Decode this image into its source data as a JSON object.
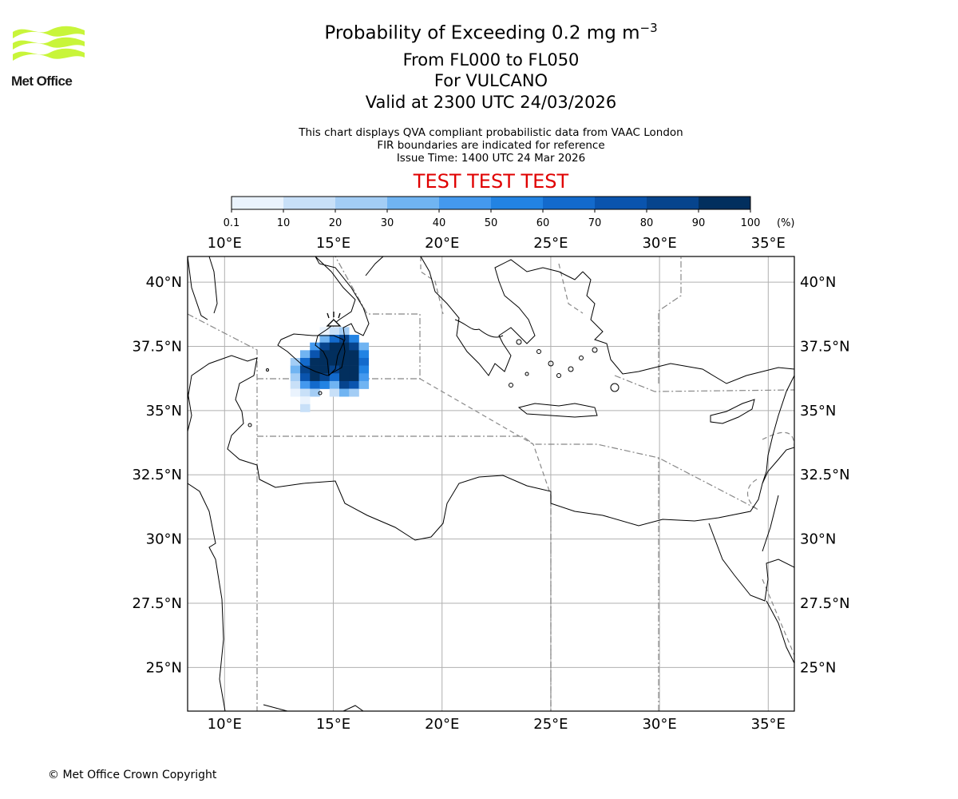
{
  "logo": {
    "text": "Met Office",
    "icon": "met-office-wave-logo",
    "color": "#c8f53a"
  },
  "titles": {
    "main_prefix": "Probability of Exceeding 0.2 mg m",
    "main_sup": "−3",
    "levels": "From FL000 to FL050",
    "volcano": "For VULCANO",
    "valid": "Valid at 2300 UTC 24/03/2026"
  },
  "subtitles": {
    "line1": "This chart displays QVA compliant probabilistic data from VAAC London",
    "line2": "FIR boundaries are indicated for reference",
    "line3": "Issue Time: 1400 UTC 24 Mar 2026"
  },
  "test_banner": "TEST TEST TEST",
  "colorbar": {
    "labels": [
      "0.1",
      "10",
      "20",
      "30",
      "40",
      "50",
      "60",
      "70",
      "80",
      "90",
      "100"
    ],
    "unit": "(%)",
    "colors": [
      "#eaf3fd",
      "#c8e0f8",
      "#a3cdf5",
      "#70b4f2",
      "#4499ee",
      "#2283e3",
      "#136acc",
      "#0a54ae",
      "#06448d",
      "#022f5e"
    ]
  },
  "map": {
    "lon_range": [
      8.3,
      36.2
    ],
    "lat_range": [
      23.3,
      41.0
    ],
    "lon_ticks": [
      "10°E",
      "15°E",
      "20°E",
      "25°E",
      "30°E",
      "35°E"
    ],
    "lat_ticks": [
      "40°N",
      "37.5°N",
      "35°N",
      "32.5°N",
      "30°N",
      "27.5°N",
      "25°N"
    ],
    "volcano_icon": "volcano-icon",
    "ash_cells": [
      [
        14.6,
        38.1,
        0
      ],
      [
        15.05,
        38.1,
        1
      ],
      [
        15.5,
        38.1,
        2
      ],
      [
        14.6,
        37.8,
        3
      ],
      [
        15.05,
        37.8,
        6
      ],
      [
        15.5,
        37.8,
        8
      ],
      [
        15.95,
        37.8,
        5
      ],
      [
        14.15,
        37.5,
        4
      ],
      [
        14.6,
        37.5,
        8
      ],
      [
        15.05,
        37.5,
        9
      ],
      [
        15.5,
        37.5,
        9
      ],
      [
        15.95,
        37.5,
        8
      ],
      [
        16.4,
        37.5,
        3
      ],
      [
        13.7,
        37.2,
        3
      ],
      [
        14.15,
        37.2,
        7
      ],
      [
        14.6,
        37.2,
        9
      ],
      [
        15.05,
        37.2,
        9
      ],
      [
        15.5,
        37.2,
        9
      ],
      [
        15.95,
        37.2,
        9
      ],
      [
        16.4,
        37.2,
        5
      ],
      [
        13.25,
        36.9,
        2
      ],
      [
        13.7,
        36.9,
        6
      ],
      [
        14.15,
        36.9,
        9
      ],
      [
        14.6,
        36.9,
        9
      ],
      [
        15.05,
        36.9,
        9
      ],
      [
        15.5,
        36.9,
        9
      ],
      [
        15.95,
        36.9,
        9
      ],
      [
        16.4,
        36.9,
        6
      ],
      [
        13.25,
        36.6,
        3
      ],
      [
        13.7,
        36.6,
        8
      ],
      [
        14.15,
        36.6,
        9
      ],
      [
        14.6,
        36.6,
        9
      ],
      [
        15.05,
        36.6,
        8
      ],
      [
        15.5,
        36.6,
        9
      ],
      [
        15.95,
        36.6,
        9
      ],
      [
        16.4,
        36.6,
        5
      ],
      [
        13.25,
        36.3,
        2
      ],
      [
        13.7,
        36.3,
        7
      ],
      [
        14.15,
        36.3,
        9
      ],
      [
        14.6,
        36.3,
        8
      ],
      [
        15.05,
        36.3,
        6
      ],
      [
        15.5,
        36.3,
        9
      ],
      [
        15.95,
        36.3,
        9
      ],
      [
        16.4,
        36.3,
        4
      ],
      [
        13.25,
        36.0,
        1
      ],
      [
        13.7,
        36.0,
        4
      ],
      [
        14.15,
        36.0,
        6
      ],
      [
        14.6,
        36.0,
        5
      ],
      [
        15.05,
        36.0,
        3
      ],
      [
        15.5,
        36.0,
        8
      ],
      [
        15.95,
        36.0,
        7
      ],
      [
        16.4,
        36.0,
        3
      ],
      [
        13.25,
        35.7,
        0
      ],
      [
        13.7,
        35.7,
        1
      ],
      [
        14.15,
        35.7,
        2
      ],
      [
        15.05,
        35.7,
        1
      ],
      [
        15.5,
        35.7,
        3
      ],
      [
        15.95,
        35.7,
        2
      ],
      [
        13.7,
        35.4,
        0
      ],
      [
        13.7,
        35.1,
        1
      ]
    ]
  },
  "copyright": "© Met Office Crown Copyright"
}
